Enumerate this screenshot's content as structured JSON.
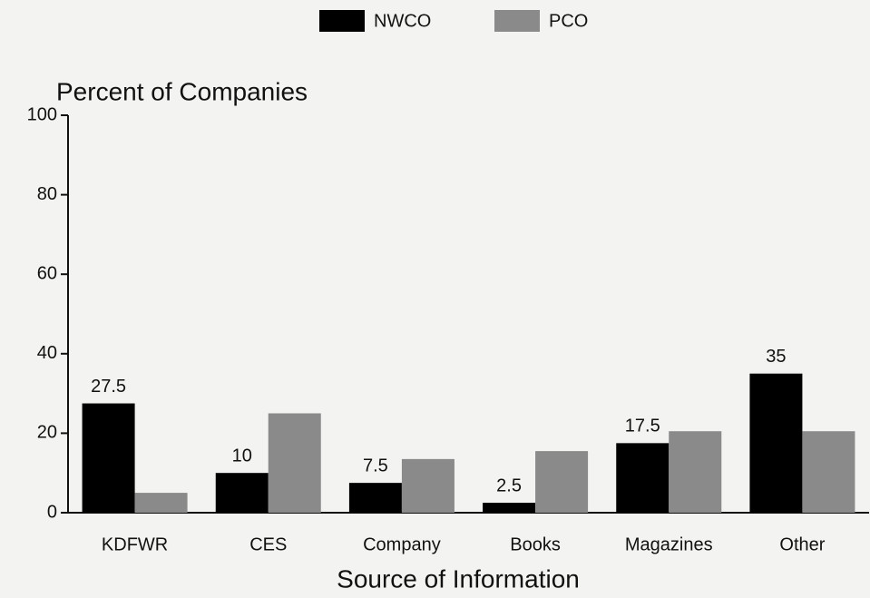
{
  "chart_data": {
    "type": "bar",
    "y_label": "Percent of Companies",
    "x_label": "Source of Information",
    "categories": [
      "KDFWR",
      "CES",
      "Company",
      "Books",
      "Magazines",
      "Other"
    ],
    "series": [
      {
        "name": "NWCO",
        "color": "#000000",
        "values": [
          27.5,
          10,
          7.5,
          2.5,
          17.5,
          35
        ],
        "labeled": true
      },
      {
        "name": "PCO",
        "color": "#8a8a8a",
        "values": [
          5,
          25,
          13.5,
          15.5,
          20.5,
          20.5
        ],
        "labeled": false
      }
    ],
    "ylim": [
      0,
      100
    ],
    "yticks": [
      0,
      20,
      40,
      60,
      80,
      100
    ],
    "grid": false
  }
}
